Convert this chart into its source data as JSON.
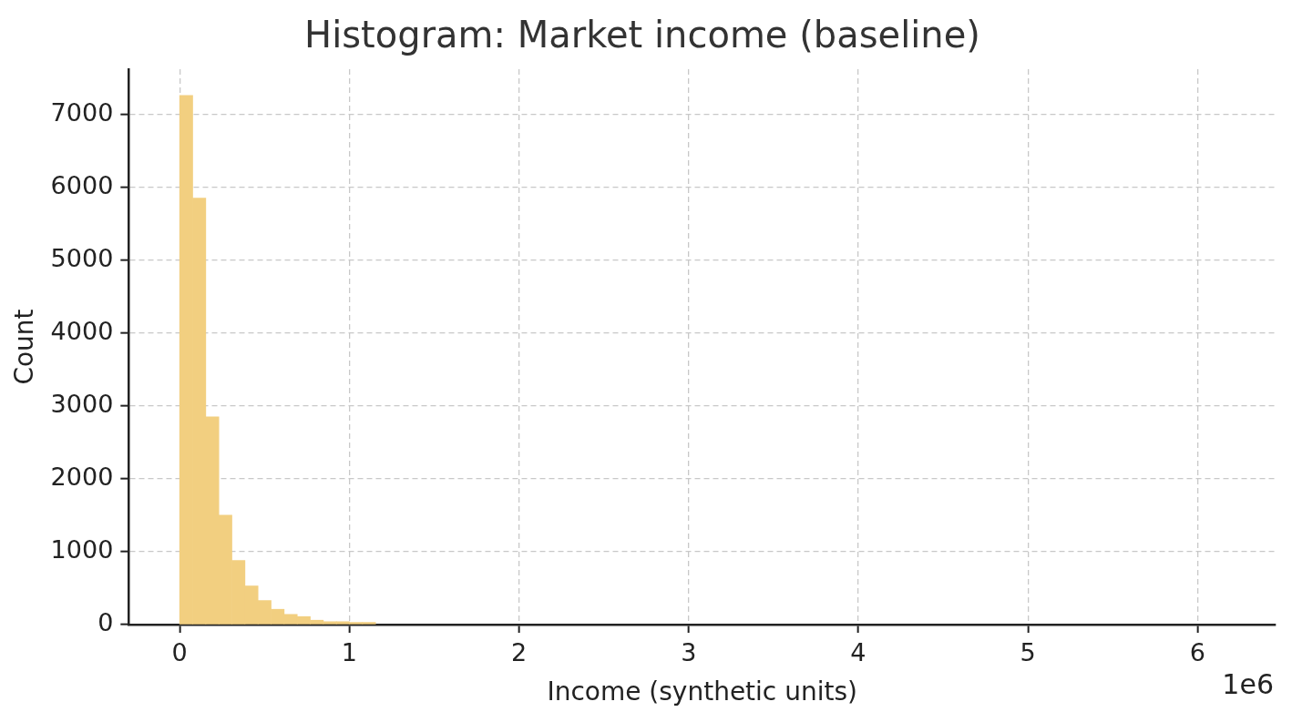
{
  "chart_data": {
    "type": "histogram",
    "title": "Histogram: Market income (baseline)",
    "xlabel": "Income (synthetic units)",
    "ylabel": "Count",
    "bins": [
      0,
      0.077,
      0.154,
      0.231,
      0.308,
      0.385,
      0.462,
      0.539,
      0.616,
      0.693,
      0.77,
      0.847,
      0.924,
      1.001,
      1.078,
      1.155
    ],
    "values": [
      7260,
      5850,
      2850,
      1500,
      880,
      530,
      330,
      210,
      140,
      110,
      60,
      40,
      40,
      30,
      30
    ],
    "color": "#f2cf80",
    "xlim": [
      -0.3,
      6.46
    ],
    "xticks": [
      0,
      1,
      2,
      3,
      4,
      5,
      6
    ],
    "ylim": [
      0,
      7620
    ],
    "yticks": [
      0,
      1000,
      2000,
      3000,
      4000,
      5000,
      6000,
      7000
    ],
    "annotations": [
      "1e6"
    ],
    "grid": true,
    "legend": false
  }
}
